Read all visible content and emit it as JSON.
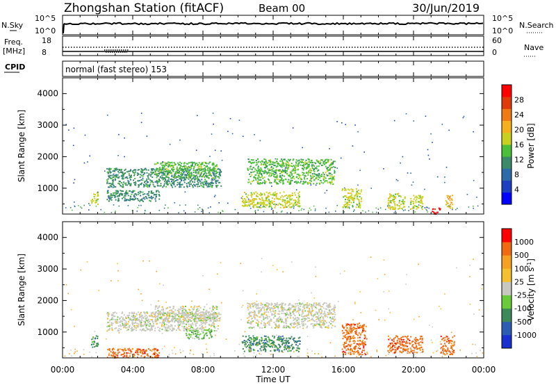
{
  "header": {
    "station": "Zhongshan Station (fitACF)",
    "beam": "Beam 00",
    "date": "30/Jun/2019"
  },
  "strips": {
    "nsky_label": "N.Sky",
    "nsky_ticks": [
      "10^5",
      "10^0"
    ],
    "nsearch_label": "N.Search",
    "nsearch_ticks": [
      "10^5",
      "10^0"
    ],
    "freq_label": "Freq.",
    "freq_unit": "[MHz]",
    "freq_ticks": [
      "18",
      "8"
    ],
    "nave_label": "Nave",
    "nave_ticks": [
      "60",
      "0"
    ],
    "cpid_label": "CPID",
    "cpid_text": "normal (fast stereo) 153"
  },
  "chart_data": [
    {
      "type": "heatmap",
      "name": "power",
      "ylabel": "Slant Range [km]",
      "yticks": [
        "4000",
        "3000",
        "2000",
        "1000"
      ],
      "ylim": [
        180,
        4500
      ],
      "colorbar_label": "Power [dB]",
      "colorbar_ticks": [
        "28",
        "24",
        "20",
        "16",
        "12",
        "8",
        "4"
      ],
      "colors": [
        "#0000ff",
        "#1e3fbf",
        "#2d6aa8",
        "#3a8a6a",
        "#4cbf3a",
        "#c8d21e",
        "#f5b01e",
        "#f07a14",
        "#e03a0a",
        "#ff0000"
      ],
      "patches": [
        {
          "t": [
            2.5,
            9.0
          ],
          "r": [
            1050,
            1650
          ],
          "level": 3
        },
        {
          "t": [
            5.2,
            8.8
          ],
          "r": [
            1350,
            1850
          ],
          "level": 4
        },
        {
          "t": [
            10.5,
            15.5
          ],
          "r": [
            1150,
            1950
          ],
          "level": 4
        },
        {
          "t": [
            2.5,
            5.5
          ],
          "r": [
            600,
            950
          ],
          "level": 3
        },
        {
          "t": [
            10.2,
            13.5
          ],
          "r": [
            400,
            900
          ],
          "level": 5
        },
        {
          "t": [
            15.9,
            17.0
          ],
          "r": [
            400,
            1000
          ],
          "level": 5
        },
        {
          "t": [
            18.5,
            19.5
          ],
          "r": [
            350,
            850
          ],
          "level": 5
        },
        {
          "t": [
            19.8,
            20.5
          ],
          "r": [
            350,
            800
          ],
          "level": 5
        },
        {
          "t": [
            21.0,
            21.5
          ],
          "r": [
            200,
            400
          ],
          "level": 9
        },
        {
          "t": [
            1.6,
            2.0
          ],
          "r": [
            500,
            900
          ],
          "level": 5
        },
        {
          "t": [
            21.8,
            22.2
          ],
          "r": [
            350,
            800
          ],
          "level": 6
        }
      ]
    },
    {
      "type": "heatmap",
      "name": "velocity",
      "ylabel": "Slant Range [km]",
      "xlabel": "Time UT",
      "xticks": [
        "00:00",
        "04:00",
        "08:00",
        "12:00",
        "16:00",
        "20:00",
        "00:00"
      ],
      "yticks": [
        "4000",
        "3000",
        "2000",
        "1000"
      ],
      "ylim": [
        180,
        4500
      ],
      "colorbar_label": "Velocity [m s^-1]",
      "colorbar_ticks": [
        "1000",
        "500",
        "100",
        "25",
        "-25",
        "-100",
        "-500",
        "-1000"
      ],
      "colors": [
        "#1a2fd0",
        "#2c5db3",
        "#3c8a5a",
        "#6acb3a",
        "#c8c8c0",
        "#f5c030",
        "#f5a020",
        "#f06a10",
        "#ff0000"
      ],
      "patches": [
        {
          "t": [
            2.5,
            9.0
          ],
          "r": [
            1050,
            1650
          ],
          "level": 4
        },
        {
          "t": [
            5.2,
            8.8
          ],
          "r": [
            1350,
            1850
          ],
          "level": 4
        },
        {
          "t": [
            10.5,
            15.5
          ],
          "r": [
            1150,
            1950
          ],
          "level": 4
        },
        {
          "t": [
            10.2,
            13.5
          ],
          "r": [
            400,
            900
          ],
          "level": 2
        },
        {
          "t": [
            7.0,
            8.5
          ],
          "r": [
            800,
            1100
          ],
          "level": 3
        },
        {
          "t": [
            2.5,
            5.5
          ],
          "r": [
            200,
            500
          ],
          "level": 7
        },
        {
          "t": [
            15.9,
            17.3
          ],
          "r": [
            300,
            1300
          ],
          "level": 7
        },
        {
          "t": [
            18.5,
            20.5
          ],
          "r": [
            350,
            900
          ],
          "level": 7
        },
        {
          "t": [
            21.5,
            22.3
          ],
          "r": [
            300,
            900
          ],
          "level": 7
        },
        {
          "t": [
            1.6,
            2.0
          ],
          "r": [
            500,
            900
          ],
          "level": 2
        }
      ]
    }
  ]
}
